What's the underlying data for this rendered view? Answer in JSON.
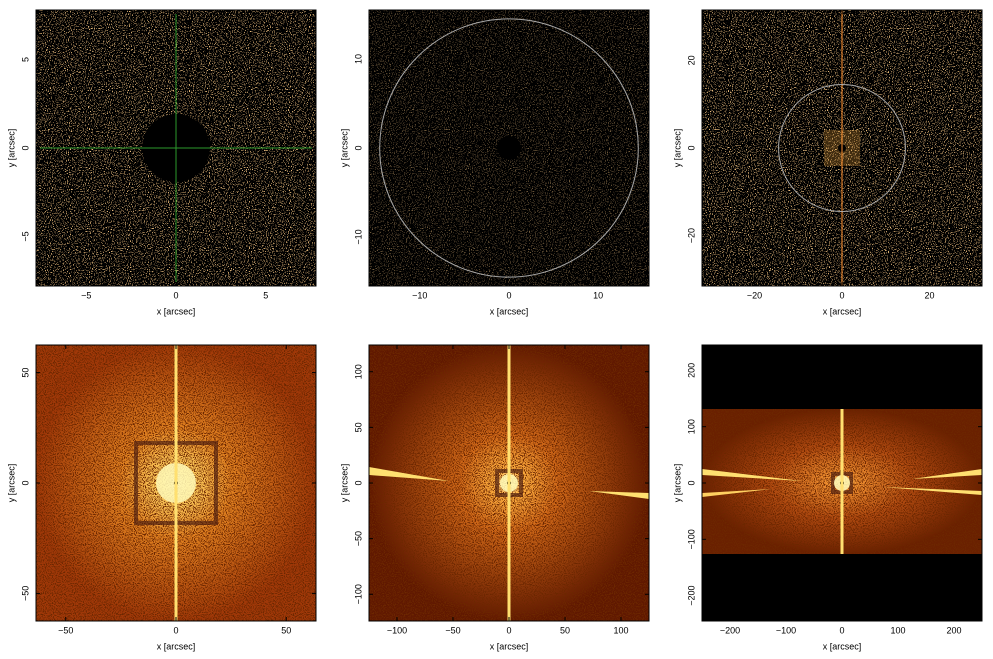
{
  "chart_data": [
    {
      "type": "image",
      "xlabel": "x [arcsec]",
      "ylabel": "y [arcsec]",
      "xlim": [
        -7.8,
        7.8
      ],
      "ylim": [
        -7.8,
        7.8
      ],
      "xticks": [
        {
          "value": -5,
          "label": "−5"
        },
        0,
        5
      ],
      "yticks": [
        {
          "value": -5,
          "label": "−5"
        },
        0,
        5
      ],
      "crosshair": true
    },
    {
      "type": "image",
      "xlabel": "x [arcsec]",
      "ylabel": "y [arcsec]",
      "xlim": [
        -15.7,
        15.7
      ],
      "ylim": [
        -15.5,
        15.5
      ],
      "xticks": [
        {
          "value": -10,
          "label": "−10"
        },
        0,
        10
      ],
      "yticks": [
        {
          "value": -10,
          "label": "−10"
        },
        0,
        10
      ],
      "circle_radius": 14.5
    },
    {
      "type": "image",
      "xlabel": "x [arcsec]",
      "ylabel": "y [arcsec]",
      "xlim": [
        -32,
        32
      ],
      "ylim": [
        -31.5,
        31.5
      ],
      "xticks": [
        {
          "value": -20,
          "label": "−20"
        },
        0,
        20
      ],
      "yticks": [
        {
          "value": -20,
          "label": "−20"
        },
        0,
        20
      ],
      "circle_radius": 14.5
    },
    {
      "type": "image",
      "xlabel": "x [arcsec]",
      "ylabel": "y [arcsec]",
      "xlim": [
        -63.5,
        63.5
      ],
      "ylim": [
        -62.5,
        62.5
      ],
      "xticks": [
        {
          "value": -50,
          "label": "−50"
        },
        0,
        50
      ],
      "yticks": [
        {
          "value": -50,
          "label": "−50"
        },
        0,
        50
      ]
    },
    {
      "type": "image",
      "xlabel": "x [arcsec]",
      "ylabel": "y [arcsec]",
      "xlim": [
        -125,
        125
      ],
      "ylim": [
        -124,
        124
      ],
      "xticks": [
        {
          "value": -100,
          "label": "−100"
        },
        {
          "value": -50,
          "label": "−50"
        },
        0,
        50,
        100
      ],
      "yticks": [
        {
          "value": -100,
          "label": "−100"
        },
        {
          "value": -50,
          "label": "−50"
        },
        0,
        50,
        100
      ]
    },
    {
      "type": "image",
      "xlabel": "x [arcsec]",
      "ylabel": "y [arcsec]",
      "xlim": [
        -250,
        250
      ],
      "ylim": [
        -245,
        245
      ],
      "xticks": [
        {
          "value": -200,
          "label": "−200"
        },
        {
          "value": -100,
          "label": "−100"
        },
        0,
        100,
        200
      ],
      "yticks": [
        {
          "value": -200,
          "label": "−200"
        },
        {
          "value": -100,
          "label": "−100"
        },
        0,
        100,
        200
      ]
    }
  ]
}
